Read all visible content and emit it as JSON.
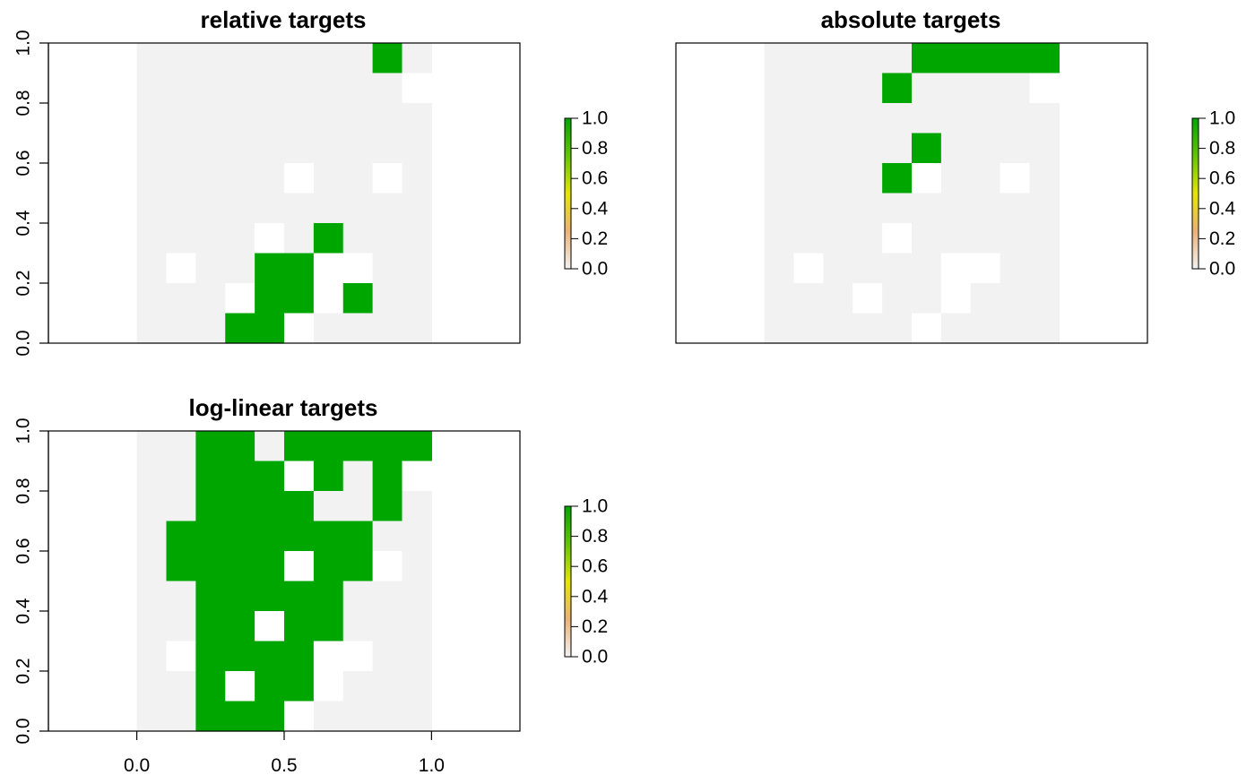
{
  "colors": {
    "selected": "#00a600",
    "unselected": "#f2f2f2",
    "missing": "#ffffff",
    "frame": "#000000",
    "legend_gradient": [
      "#f2f2f2",
      "#ecb176",
      "#e6e600",
      "#63c600",
      "#00a600"
    ]
  },
  "chart_data": [
    {
      "type": "heatmap",
      "title": "relative targets",
      "xlim": [
        -0.3,
        1.3
      ],
      "ylim": [
        0,
        1
      ],
      "x_ticks": [],
      "y_ticks": [
        "0.0",
        "0.2",
        "0.4",
        "0.6",
        "0.8",
        "1.0"
      ],
      "grid": false,
      "legend": {
        "position": "right",
        "ticks": [
          "0.0",
          "0.2",
          "0.4",
          "0.6",
          "0.8",
          "1.0"
        ]
      },
      "encoding": "values grid rows from top (y=1.0) to bottom (y=0.0), columns from x=0.0 to x=1.0; 1 = selected, 0 = not selected, null = no data",
      "values": [
        [
          0,
          0,
          0,
          0,
          0,
          0,
          0,
          0,
          1,
          0
        ],
        [
          0,
          0,
          0,
          0,
          0,
          0,
          0,
          0,
          0,
          null
        ],
        [
          0,
          0,
          0,
          0,
          0,
          0,
          0,
          0,
          0,
          0
        ],
        [
          0,
          0,
          0,
          0,
          0,
          0,
          0,
          0,
          0,
          0
        ],
        [
          0,
          0,
          0,
          0,
          0,
          null,
          0,
          0,
          null,
          0
        ],
        [
          0,
          0,
          0,
          0,
          0,
          0,
          0,
          0,
          0,
          0
        ],
        [
          0,
          0,
          0,
          0,
          null,
          0,
          1,
          0,
          0,
          0
        ],
        [
          0,
          null,
          0,
          0,
          1,
          1,
          null,
          null,
          0,
          0
        ],
        [
          0,
          0,
          0,
          null,
          1,
          1,
          null,
          1,
          0,
          0
        ],
        [
          0,
          0,
          0,
          1,
          1,
          null,
          0,
          0,
          0,
          0
        ]
      ]
    },
    {
      "type": "heatmap",
      "title": "absolute targets",
      "xlim": [
        -0.3,
        1.3
      ],
      "ylim": [
        0,
        1
      ],
      "x_ticks": [],
      "y_ticks": [],
      "grid": false,
      "legend": {
        "position": "right",
        "ticks": [
          "0.0",
          "0.2",
          "0.4",
          "0.6",
          "0.8",
          "1.0"
        ]
      },
      "encoding": "values grid rows from top (y=1.0) to bottom (y=0.0), columns from x=0.0 to x=1.0; 1 = selected, 0 = not selected, null = no data",
      "values": [
        [
          0,
          0,
          0,
          0,
          0,
          1,
          1,
          1,
          1,
          1
        ],
        [
          0,
          0,
          0,
          0,
          1,
          0,
          0,
          0,
          0,
          null
        ],
        [
          0,
          0,
          0,
          0,
          0,
          0,
          0,
          0,
          0,
          0
        ],
        [
          0,
          0,
          0,
          0,
          0,
          1,
          0,
          0,
          0,
          0
        ],
        [
          0,
          0,
          0,
          0,
          1,
          null,
          0,
          0,
          null,
          0
        ],
        [
          0,
          0,
          0,
          0,
          0,
          0,
          0,
          0,
          0,
          0
        ],
        [
          0,
          0,
          0,
          0,
          null,
          0,
          0,
          0,
          0,
          0
        ],
        [
          0,
          null,
          0,
          0,
          0,
          0,
          null,
          null,
          0,
          0
        ],
        [
          0,
          0,
          0,
          null,
          0,
          0,
          null,
          0,
          0,
          0
        ],
        [
          0,
          0,
          0,
          0,
          0,
          null,
          0,
          0,
          0,
          0
        ]
      ]
    },
    {
      "type": "heatmap",
      "title": "log-linear targets",
      "xlim": [
        -0.3,
        1.3
      ],
      "ylim": [
        0,
        1
      ],
      "x_ticks": [
        "0.0",
        "0.5",
        "1.0"
      ],
      "y_ticks": [
        "0.0",
        "0.2",
        "0.4",
        "0.6",
        "0.8",
        "1.0"
      ],
      "grid": false,
      "legend": {
        "position": "right",
        "ticks": [
          "0.0",
          "0.2",
          "0.4",
          "0.6",
          "0.8",
          "1.0"
        ]
      },
      "encoding": "values grid rows from top (y=1.0) to bottom (y=0.0), columns from x=0.0 to x=1.0; 1 = selected, 0 = not selected, null = no data",
      "values": [
        [
          0,
          0,
          1,
          1,
          0,
          1,
          1,
          1,
          1,
          1
        ],
        [
          0,
          0,
          1,
          1,
          1,
          null,
          1,
          0,
          1,
          null
        ],
        [
          0,
          0,
          1,
          1,
          1,
          1,
          0,
          0,
          1,
          0
        ],
        [
          0,
          1,
          1,
          1,
          1,
          1,
          1,
          1,
          0,
          0
        ],
        [
          0,
          1,
          1,
          1,
          1,
          null,
          1,
          1,
          null,
          0
        ],
        [
          0,
          0,
          1,
          1,
          1,
          1,
          1,
          0,
          0,
          0
        ],
        [
          0,
          0,
          1,
          1,
          null,
          1,
          1,
          0,
          0,
          0
        ],
        [
          0,
          null,
          1,
          1,
          1,
          1,
          null,
          null,
          0,
          0
        ],
        [
          0,
          0,
          1,
          null,
          1,
          1,
          null,
          0,
          0,
          0
        ],
        [
          0,
          0,
          1,
          1,
          1,
          null,
          0,
          0,
          0,
          0
        ]
      ]
    }
  ]
}
